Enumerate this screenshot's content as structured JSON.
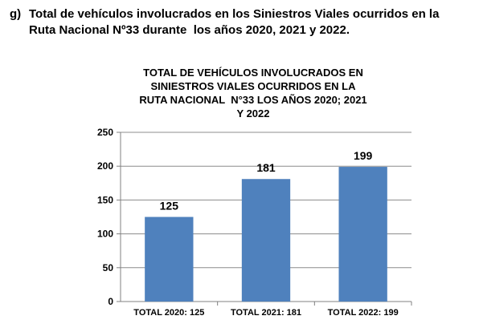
{
  "heading": {
    "marker": "g)",
    "line1": "Total de vehículos involucrados en los Siniestros Viales ocurridos en la",
    "line2": "Ruta Nacional Nº33 durante  los años 2020, 2021 y 2022."
  },
  "chart_title_lines": [
    "TOTAL DE VEHÍCULOS INVOLUCRADOS EN",
    "SINIESTROS VIALES OCURRIDOS EN LA",
    "RUTA NACIONAL  N°33 LOS AÑOS 2020; 2021",
    "Y 2022"
  ],
  "chart_data": {
    "type": "bar",
    "title": "TOTAL DE VEHÍCULOS INVOLUCRADOS EN SINIESTROS VIALES OCURRIDOS EN LA RUTA NACIONAL  N°33 LOS AÑOS 2020; 2021 Y 2022",
    "categories": [
      "TOTAL 2020: 125",
      "TOTAL 2021: 181",
      "TOTAL 2022: 199"
    ],
    "values": [
      125,
      181,
      199
    ],
    "data_labels": [
      "125",
      "181",
      "199"
    ],
    "ylim": [
      0,
      250
    ],
    "yticks": [
      0,
      50,
      100,
      150,
      200,
      250
    ],
    "grid": true,
    "legend": "none",
    "bar_color": "#4F81BD",
    "grid_color": "#8c8c8c"
  }
}
